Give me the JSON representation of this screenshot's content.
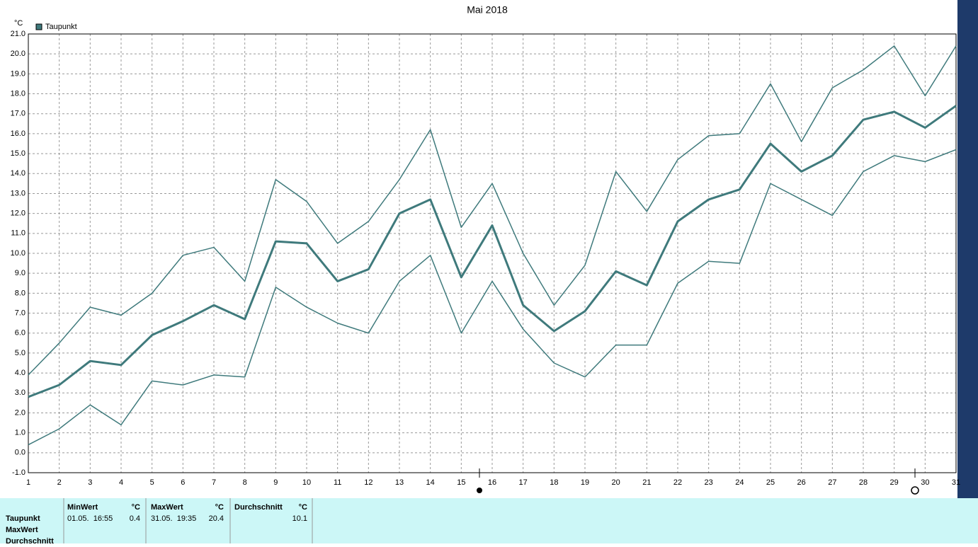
{
  "chart_data": {
    "type": "line",
    "title": "Mai 2018",
    "y_unit": "°C",
    "x": [
      1,
      2,
      3,
      4,
      5,
      6,
      7,
      8,
      9,
      10,
      11,
      12,
      13,
      14,
      15,
      16,
      17,
      18,
      19,
      20,
      21,
      22,
      23,
      24,
      25,
      26,
      27,
      28,
      29,
      30,
      31
    ],
    "xlim": [
      1,
      31
    ],
    "xticks": [
      1,
      2,
      3,
      4,
      5,
      6,
      7,
      8,
      9,
      10,
      11,
      12,
      13,
      14,
      15,
      16,
      17,
      18,
      19,
      20,
      21,
      22,
      23,
      24,
      25,
      26,
      27,
      28,
      29,
      30,
      31
    ],
    "ylim": [
      -1,
      21
    ],
    "yticks": [
      {
        "value": -1,
        "label": "-1.0"
      },
      {
        "value": 0,
        "label": "0.0"
      },
      {
        "value": 1,
        "label": "1.0"
      },
      {
        "value": 2,
        "label": "2.0"
      },
      {
        "value": 3,
        "label": "3.0"
      },
      {
        "value": 4,
        "label": "4.0"
      },
      {
        "value": 5,
        "label": "5.0"
      },
      {
        "value": 6,
        "label": "6.0"
      },
      {
        "value": 7,
        "label": "7.0"
      },
      {
        "value": 8,
        "label": "8.0"
      },
      {
        "value": 9,
        "label": "9.0"
      },
      {
        "value": 10,
        "label": "10.0"
      },
      {
        "value": 11,
        "label": "11.0"
      },
      {
        "value": 12,
        "label": "12.0"
      },
      {
        "value": 13,
        "label": "13.0"
      },
      {
        "value": 14,
        "label": "14.0"
      },
      {
        "value": 15,
        "label": "15.0"
      },
      {
        "value": 16,
        "label": "16.0"
      },
      {
        "value": 17,
        "label": "17.0"
      },
      {
        "value": 18,
        "label": "18.0"
      },
      {
        "value": 19,
        "label": "19.0"
      },
      {
        "value": 20,
        "label": "20.0"
      },
      {
        "value": 21,
        "label": "21.0"
      }
    ],
    "grid": true,
    "legend": "top-left",
    "series": [
      {
        "color": "#3f7a7c",
        "line_width": 1.5,
        "values": [
          3.9,
          5.5,
          7.3,
          6.9,
          8.0,
          9.9,
          10.3,
          8.6,
          13.7,
          12.6,
          10.5,
          11.6,
          13.7,
          16.2,
          11.3,
          13.5,
          10.0,
          7.4,
          9.4,
          14.1,
          12.1,
          14.7,
          15.9,
          16.0,
          18.5,
          15.6,
          18.3,
          19.2,
          20.4,
          17.9,
          20.4
        ]
      },
      {
        "name": "Taupunkt",
        "color": "#3f7a7c",
        "line_width": 3,
        "values": [
          2.8,
          3.4,
          4.6,
          4.4,
          5.9,
          6.6,
          7.4,
          6.7,
          10.6,
          10.5,
          8.6,
          9.2,
          12.0,
          12.7,
          8.8,
          11.4,
          7.4,
          6.1,
          7.1,
          9.1,
          8.4,
          11.6,
          12.7,
          13.2,
          15.5,
          14.1,
          14.9,
          16.7,
          17.1,
          16.3,
          17.4
        ]
      },
      {
        "color": "#3f7a7c",
        "line_width": 1.5,
        "values": [
          0.4,
          1.2,
          2.4,
          1.4,
          3.6,
          3.4,
          3.9,
          3.8,
          8.3,
          7.3,
          6.5,
          6.0,
          8.6,
          9.9,
          6.0,
          8.6,
          6.2,
          4.5,
          3.8,
          5.4,
          5.4,
          8.5,
          9.6,
          9.5,
          13.5,
          12.7,
          11.9,
          14.1,
          14.9,
          14.6,
          15.2
        ]
      }
    ]
  },
  "stats": {
    "columns": [
      {
        "title": "MinWert",
        "unit": "°C"
      },
      {
        "title": "MaxWert",
        "unit": "°C"
      },
      {
        "title": "Durchschnitt",
        "unit": "°C"
      }
    ],
    "rows": [
      {
        "label": "Taupunkt",
        "min_time": "01.05.  16:55",
        "min": 0.4,
        "max_time": "31.05.  19:35",
        "max": 20.4,
        "mean": 10.1
      },
      {
        "label": "MaxWert"
      },
      {
        "label": "Durchschnitt"
      }
    ]
  }
}
